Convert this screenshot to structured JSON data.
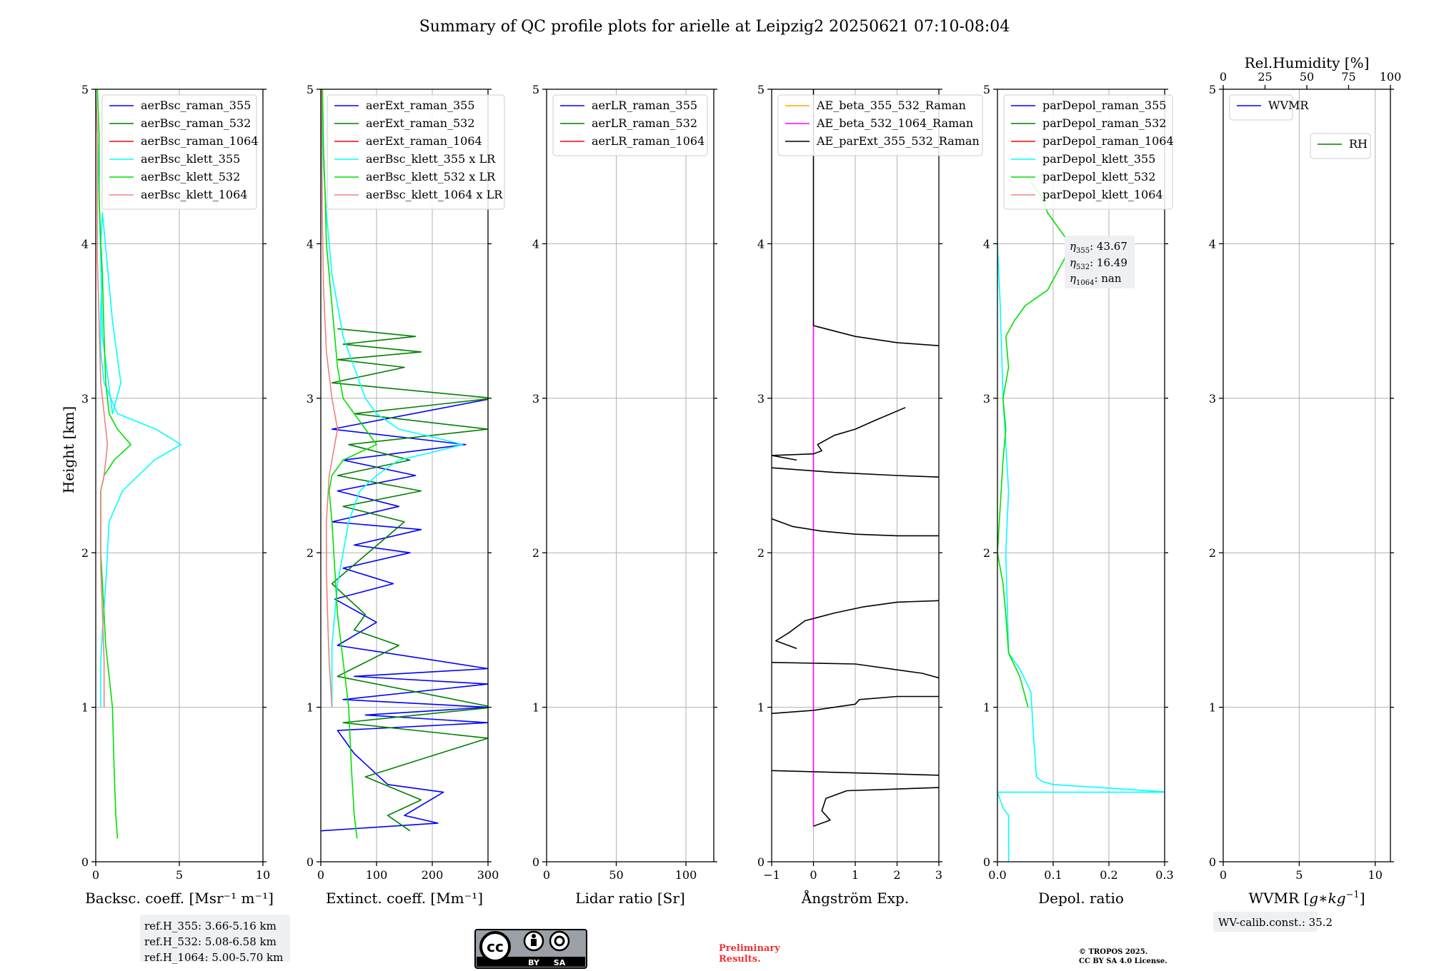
{
  "title": "Summary of QC profile plots for arielle at Leipzig2 20250621 07:10-08:04",
  "y_label": "Height [km]",
  "colors": {
    "blue": "#0000ff",
    "green": "#008000",
    "red": "#ff0000",
    "cyan": "#00ffff",
    "lime": "#00e000",
    "salmon": "#f08080",
    "orange": "#ffa500",
    "magenta": "#ff00ff",
    "black": "#000000",
    "grid": "#b0b0b0"
  },
  "chart_data": [
    {
      "id": "p1",
      "type": "line",
      "xlabel": "Backsc. coeff. [Msr⁻¹ m⁻¹]",
      "ylabel": "Height [km]",
      "xlim": [
        0,
        10
      ],
      "ylim": [
        0,
        5
      ],
      "xticks": [
        {
          "v": 0,
          "t": "0"
        },
        {
          "v": 5,
          "t": "5"
        },
        {
          "v": 10,
          "t": "10"
        }
      ],
      "yticks": [
        "0",
        "1",
        "2",
        "3",
        "4",
        "5"
      ],
      "legend": [
        "aerBsc_raman_355",
        "aerBsc_raman_532",
        "aerBsc_raman_1064",
        "aerBsc_klett_355",
        "aerBsc_klett_532",
        "aerBsc_klett_1064"
      ],
      "legend_colors": [
        "blue",
        "green",
        "red",
        "cyan",
        "lime",
        "salmon"
      ],
      "series": [
        {
          "name": "aerBsc_klett_355",
          "color": "cyan",
          "x": [
            0.3,
            0.3,
            0.4,
            0.6,
            0.8,
            1.6,
            3.5,
            5.1,
            3.6,
            1.3,
            0.5,
            0.3,
            0.3,
            0.4,
            0.3,
            0.4,
            1.0,
            1.5,
            1.0,
            0.4,
            0.3,
            0.2,
            0.1,
            0.0
          ],
          "y": [
            1.0,
            1.3,
            1.5,
            1.8,
            2.2,
            2.4,
            2.6,
            2.7,
            2.8,
            2.9,
            3.1,
            3.3,
            3.6,
            3.8,
            4.0,
            4.2,
            3.5,
            3.1,
            2.9,
            3.4,
            3.9,
            4.3,
            4.7,
            5.0
          ]
        },
        {
          "name": "aerBsc_klett_532",
          "color": "lime",
          "x": [
            1.3,
            1.2,
            1.1,
            1.0,
            0.8,
            0.6,
            0.5,
            0.4,
            0.3,
            0.3,
            0.3,
            0.5,
            1.1,
            2.1,
            1.3,
            0.8,
            0.6,
            0.5,
            0.4,
            0.3,
            0.2,
            0.2,
            0.1
          ],
          "y": [
            0.15,
            0.3,
            0.6,
            1.0,
            1.2,
            1.4,
            1.6,
            1.8,
            2.0,
            2.2,
            2.4,
            2.5,
            2.6,
            2.7,
            2.8,
            2.9,
            3.1,
            3.4,
            3.8,
            4.0,
            4.3,
            4.7,
            5.0
          ]
        },
        {
          "name": "aerBsc_klett_1064",
          "color": "salmon",
          "x": [
            0.5,
            0.5,
            0.4,
            0.3,
            0.3,
            0.3,
            0.5,
            0.7,
            0.5,
            0.3,
            0.2,
            0.1,
            0.1,
            0.1,
            0.0
          ],
          "y": [
            1.0,
            1.3,
            1.6,
            1.9,
            2.2,
            2.4,
            2.5,
            2.7,
            2.9,
            3.1,
            3.5,
            3.9,
            4.3,
            4.7,
            5.0
          ]
        }
      ]
    },
    {
      "id": "p2",
      "type": "line",
      "xlabel": "Extinct. coeff. [Mm⁻¹]",
      "ylabel": "",
      "xlim": [
        0,
        300
      ],
      "ylim": [
        0,
        5
      ],
      "xticks": [
        {
          "v": 0,
          "t": "0"
        },
        {
          "v": 100,
          "t": "100"
        },
        {
          "v": 200,
          "t": "200"
        },
        {
          "v": 300,
          "t": "300"
        }
      ],
      "yticks": [
        "0",
        "1",
        "2",
        "3",
        "4",
        "5"
      ],
      "legend": [
        "aerExt_raman_355",
        "aerExt_raman_532",
        "aerExt_raman_1064",
        "aerBsc_klett_355 x LR",
        "aerBsc_klett_532 x LR",
        "aerBsc_klett_1064 x LR"
      ],
      "legend_colors": [
        "blue",
        "green",
        "red",
        "cyan",
        "lime",
        "salmon"
      ],
      "series": [
        {
          "name": "aerExt_raman_355",
          "color": "blue",
          "x": [
            0,
            210,
            150,
            220,
            120,
            60,
            30,
            300,
            80,
            300,
            40,
            300,
            60,
            300,
            30,
            100,
            25,
            130,
            40,
            160,
            60,
            180,
            20,
            140,
            30,
            170,
            40,
            260,
            20,
            310
          ],
          "y": [
            0.2,
            0.25,
            0.3,
            0.45,
            0.5,
            0.7,
            0.85,
            0.9,
            0.95,
            1.0,
            1.05,
            1.15,
            1.2,
            1.25,
            1.4,
            1.55,
            1.7,
            1.8,
            1.9,
            2.0,
            2.05,
            2.15,
            2.2,
            2.3,
            2.4,
            2.5,
            2.6,
            2.7,
            2.8,
            3.0
          ]
        },
        {
          "name": "aerExt_raman_532",
          "color": "green",
          "x": [
            160,
            120,
            180,
            80,
            300,
            40,
            310,
            30,
            140,
            60,
            80,
            20,
            150,
            40,
            180,
            30,
            160,
            50,
            300,
            60,
            310,
            20,
            150,
            30,
            180,
            40,
            170,
            30
          ],
          "y": [
            0.2,
            0.3,
            0.4,
            0.55,
            0.8,
            0.9,
            1.0,
            1.2,
            1.4,
            1.5,
            1.6,
            1.8,
            2.2,
            2.3,
            2.4,
            2.5,
            2.6,
            2.7,
            2.8,
            2.9,
            3.0,
            3.1,
            3.2,
            3.25,
            3.3,
            3.35,
            3.4,
            3.45
          ]
        },
        {
          "name": "aerBsc_klett_355 x LR",
          "color": "cyan",
          "x": [
            20,
            20,
            30,
            50,
            70,
            100,
            140,
            200,
            255,
            200,
            140,
            100,
            80,
            70,
            60,
            40,
            30,
            20,
            15,
            10,
            5,
            3,
            2,
            1
          ],
          "y": [
            1.0,
            1.4,
            1.8,
            2.2,
            2.4,
            2.5,
            2.6,
            2.65,
            2.7,
            2.75,
            2.8,
            2.9,
            3.0,
            3.1,
            3.2,
            3.4,
            3.6,
            3.8,
            4.0,
            4.2,
            4.5,
            4.7,
            4.9,
            5.0
          ]
        },
        {
          "name": "aerBsc_klett_532 x LR",
          "color": "lime",
          "x": [
            65,
            60,
            55,
            50,
            40,
            30,
            25,
            20,
            15,
            20,
            40,
            70,
            100,
            80,
            60,
            40,
            30,
            25,
            20,
            15,
            10,
            8,
            5,
            3
          ],
          "y": [
            0.15,
            0.3,
            0.6,
            1.0,
            1.3,
            1.6,
            1.9,
            2.2,
            2.4,
            2.5,
            2.6,
            2.65,
            2.7,
            2.8,
            2.9,
            3.0,
            3.2,
            3.4,
            3.6,
            3.8,
            4.0,
            4.3,
            4.6,
            5.0
          ]
        },
        {
          "name": "aerBsc_klett_1064 x LR",
          "color": "salmon",
          "x": [
            20,
            15,
            12,
            10,
            10,
            15,
            25,
            30,
            20,
            10,
            5,
            3,
            2,
            1
          ],
          "y": [
            1.0,
            1.3,
            1.6,
            1.9,
            2.2,
            2.5,
            2.7,
            2.8,
            3.0,
            3.3,
            3.7,
            4.1,
            4.5,
            5.0
          ]
        }
      ]
    },
    {
      "id": "p3",
      "type": "line",
      "xlabel": "Lidar ratio [Sr]",
      "ylabel": "",
      "xlim": [
        0,
        120
      ],
      "ylim": [
        0,
        5
      ],
      "xticks": [
        {
          "v": 0,
          "t": "0"
        },
        {
          "v": 50,
          "t": "50"
        },
        {
          "v": 100,
          "t": "100"
        }
      ],
      "yticks": [
        "0",
        "1",
        "2",
        "3",
        "4",
        "5"
      ],
      "legend": [
        "aerLR_raman_355",
        "aerLR_raman_532",
        "aerLR_raman_1064"
      ],
      "legend_colors": [
        "blue",
        "green",
        "red"
      ],
      "series": []
    },
    {
      "id": "p4",
      "type": "line",
      "xlabel": "Ångström Exp.",
      "ylabel": "",
      "xlim": [
        -1,
        3
      ],
      "ylim": [
        0,
        5
      ],
      "xticks": [
        {
          "v": -1,
          "t": "−1"
        },
        {
          "v": 0,
          "t": "0"
        },
        {
          "v": 1,
          "t": "1"
        },
        {
          "v": 2,
          "t": "2"
        },
        {
          "v": 3,
          "t": "3"
        }
      ],
      "yticks": [
        "0",
        "1",
        "2",
        "3",
        "4",
        "5"
      ],
      "legend": [
        "AE_beta_355_532_Raman",
        "AE_beta_532_1064_Raman",
        "AE_parExt_355_532_Raman"
      ],
      "legend_colors": [
        "orange",
        "magenta",
        "black"
      ],
      "series": [
        {
          "name": "AE_beta_532_1064_Raman",
          "color": "magenta",
          "x": [
            0,
            0
          ],
          "y": [
            0.23,
            3.5
          ]
        },
        {
          "name": "AE_parExt_355_532_Raman",
          "color": "black",
          "x": [
            0.0,
            0.4,
            0.2,
            0.3,
            0.8,
            3.0
          ],
          "y": [
            0.23,
            0.27,
            0.33,
            0.41,
            0.46,
            0.48
          ]
        },
        {
          "name": "AE_parExt_355_532_Raman",
          "color": "black",
          "x": [
            -1.0,
            3.0
          ],
          "y": [
            0.59,
            0.56
          ]
        },
        {
          "name": "AE_parExt_355_532_Raman",
          "color": "black",
          "x": [
            -1.0,
            0.0,
            1.0,
            1.1,
            2.0,
            3.0
          ],
          "y": [
            0.96,
            0.98,
            1.02,
            1.05,
            1.07,
            1.07
          ]
        },
        {
          "name": "AE_parExt_355_532_Raman",
          "color": "black",
          "x": [
            -1.0,
            1.0,
            2.6,
            3.0
          ],
          "y": [
            1.29,
            1.28,
            1.22,
            1.19
          ]
        },
        {
          "name": "AE_parExt_355_532_Raman",
          "color": "black",
          "x": [
            -0.4,
            -0.9,
            -0.6,
            -0.2,
            0.5,
            1.2,
            2.0,
            3.0
          ],
          "y": [
            1.38,
            1.43,
            1.48,
            1.56,
            1.61,
            1.65,
            1.68,
            1.69
          ]
        },
        {
          "name": "AE_parExt_355_532_Raman",
          "color": "black",
          "x": [
            -1.0,
            -0.5,
            0.2,
            1.0,
            2.0,
            3.0
          ],
          "y": [
            2.22,
            2.17,
            2.14,
            2.12,
            2.11,
            2.11
          ]
        },
        {
          "name": "AE_parExt_355_532_Raman",
          "color": "black",
          "x": [
            -1.0,
            0.5,
            2.0,
            3.0
          ],
          "y": [
            2.55,
            2.52,
            2.5,
            2.49
          ]
        },
        {
          "name": "AE_parExt_355_532_Raman",
          "color": "black",
          "x": [
            -0.4,
            -1.0,
            0.0,
            0.2,
            0.1,
            0.3,
            0.5,
            1.0,
            1.5,
            2.2
          ],
          "y": [
            2.6,
            2.63,
            2.64,
            2.66,
            2.7,
            2.73,
            2.76,
            2.8,
            2.86,
            2.94
          ]
        },
        {
          "name": "AE_parExt_355_532_Raman",
          "color": "black",
          "x": [
            0.0,
            0.0,
            1.0,
            2.0,
            3.0
          ],
          "y": [
            5.0,
            3.47,
            3.4,
            3.36,
            3.34
          ]
        }
      ]
    },
    {
      "id": "p5",
      "type": "line",
      "xlabel": "Depol. ratio",
      "ylabel": "",
      "xlim": [
        0,
        0.3
      ],
      "ylim": [
        0,
        5
      ],
      "xticks": [
        {
          "v": 0,
          "t": "0.0"
        },
        {
          "v": 0.1,
          "t": "0.1"
        },
        {
          "v": 0.2,
          "t": "0.2"
        },
        {
          "v": 0.3,
          "t": "0.3"
        }
      ],
      "yticks": [
        "0",
        "1",
        "2",
        "3",
        "4",
        "5"
      ],
      "legend": [
        "parDepol_raman_355",
        "parDepol_raman_532",
        "parDepol_raman_1064",
        "parDepol_klett_355",
        "parDepol_klett_532",
        "parDepol_klett_1064"
      ],
      "legend_colors": [
        "blue",
        "green",
        "red",
        "cyan",
        "lime",
        "salmon"
      ],
      "series": [
        {
          "name": "parDepol_klett_355",
          "color": "cyan",
          "x": [
            0.02,
            0.02,
            0.01,
            0.0,
            0.31,
            0.1,
            0.08,
            0.07,
            0.065,
            0.06,
            0.04,
            0.02,
            0.015,
            0.02,
            0.01,
            0.005,
            0.0
          ],
          "y": [
            0.0,
            0.3,
            0.35,
            0.45,
            0.45,
            0.5,
            0.52,
            0.55,
            0.8,
            1.1,
            1.25,
            1.35,
            2.0,
            2.4,
            3.0,
            3.6,
            4.0
          ]
        },
        {
          "name": "parDepol_klett_532",
          "color": "lime",
          "x": [
            0.055,
            0.04,
            0.02,
            0.015,
            0.01,
            0.0,
            0.005,
            0.01,
            0.015,
            0.01,
            0.02,
            0.015,
            0.03,
            0.05,
            0.09,
            0.12,
            0.13,
            0.11,
            0.09,
            0.08,
            0.06
          ],
          "y": [
            1.0,
            1.2,
            1.35,
            1.6,
            1.8,
            2.0,
            2.3,
            2.6,
            2.8,
            3.0,
            3.2,
            3.4,
            3.5,
            3.6,
            3.7,
            3.9,
            4.0,
            4.1,
            4.2,
            4.3,
            4.4
          ]
        }
      ]
    },
    {
      "id": "p6",
      "type": "line",
      "xlabel": "WVMR [g*kg⁻¹]",
      "xlabel_main": "WVMR [",
      "xlabel_math": "g∗kg",
      "xlabel_sup": "−1",
      "xlabel_end": "]",
      "ylabel": "",
      "xlim": [
        0,
        11
      ],
      "ylim": [
        0,
        5
      ],
      "xticks": [
        {
          "v": 0,
          "t": "0"
        },
        {
          "v": 5,
          "t": "5"
        },
        {
          "v": 10,
          "t": "10"
        }
      ],
      "yticks": [
        "0",
        "1",
        "2",
        "3",
        "4",
        "5"
      ],
      "top_xlabel": "Rel.Humidity [%]",
      "top_xlim": [
        0,
        100
      ],
      "top_xticks": [
        {
          "v": 0,
          "t": "0"
        },
        {
          "v": 25,
          "t": "25"
        },
        {
          "v": 50,
          "t": "50"
        },
        {
          "v": 75,
          "t": "75"
        },
        {
          "v": 100,
          "t": "100"
        }
      ],
      "legend": [
        "WVMR"
      ],
      "legend_colors": [
        "blue"
      ],
      "legend2": [
        "RH"
      ],
      "legend2_colors": [
        "green"
      ],
      "series": []
    }
  ],
  "annotations": {
    "ref_h": [
      "ref.H_355: 3.66-5.16 km",
      "ref.H_532: 5.08-6.58 km",
      "ref.H_1064: 5.00-5.70 km"
    ],
    "eta": [
      {
        "sym": "η",
        "sub": "355",
        "val": ": 43.67"
      },
      {
        "sym": "η",
        "sub": "532",
        "val": ": 16.49"
      },
      {
        "sym": "η",
        "sub": "1064",
        "val": ": nan"
      }
    ],
    "wv_calib": "WV-calib.const.: 35.2",
    "preliminary": [
      "Preliminary",
      "Results."
    ],
    "copyright": [
      "© TROPOS 2025.",
      "CC BY SA 4.0 License."
    ],
    "cc_badge": {
      "letters": "cc",
      "by": "BY",
      "sa": "SA"
    }
  }
}
